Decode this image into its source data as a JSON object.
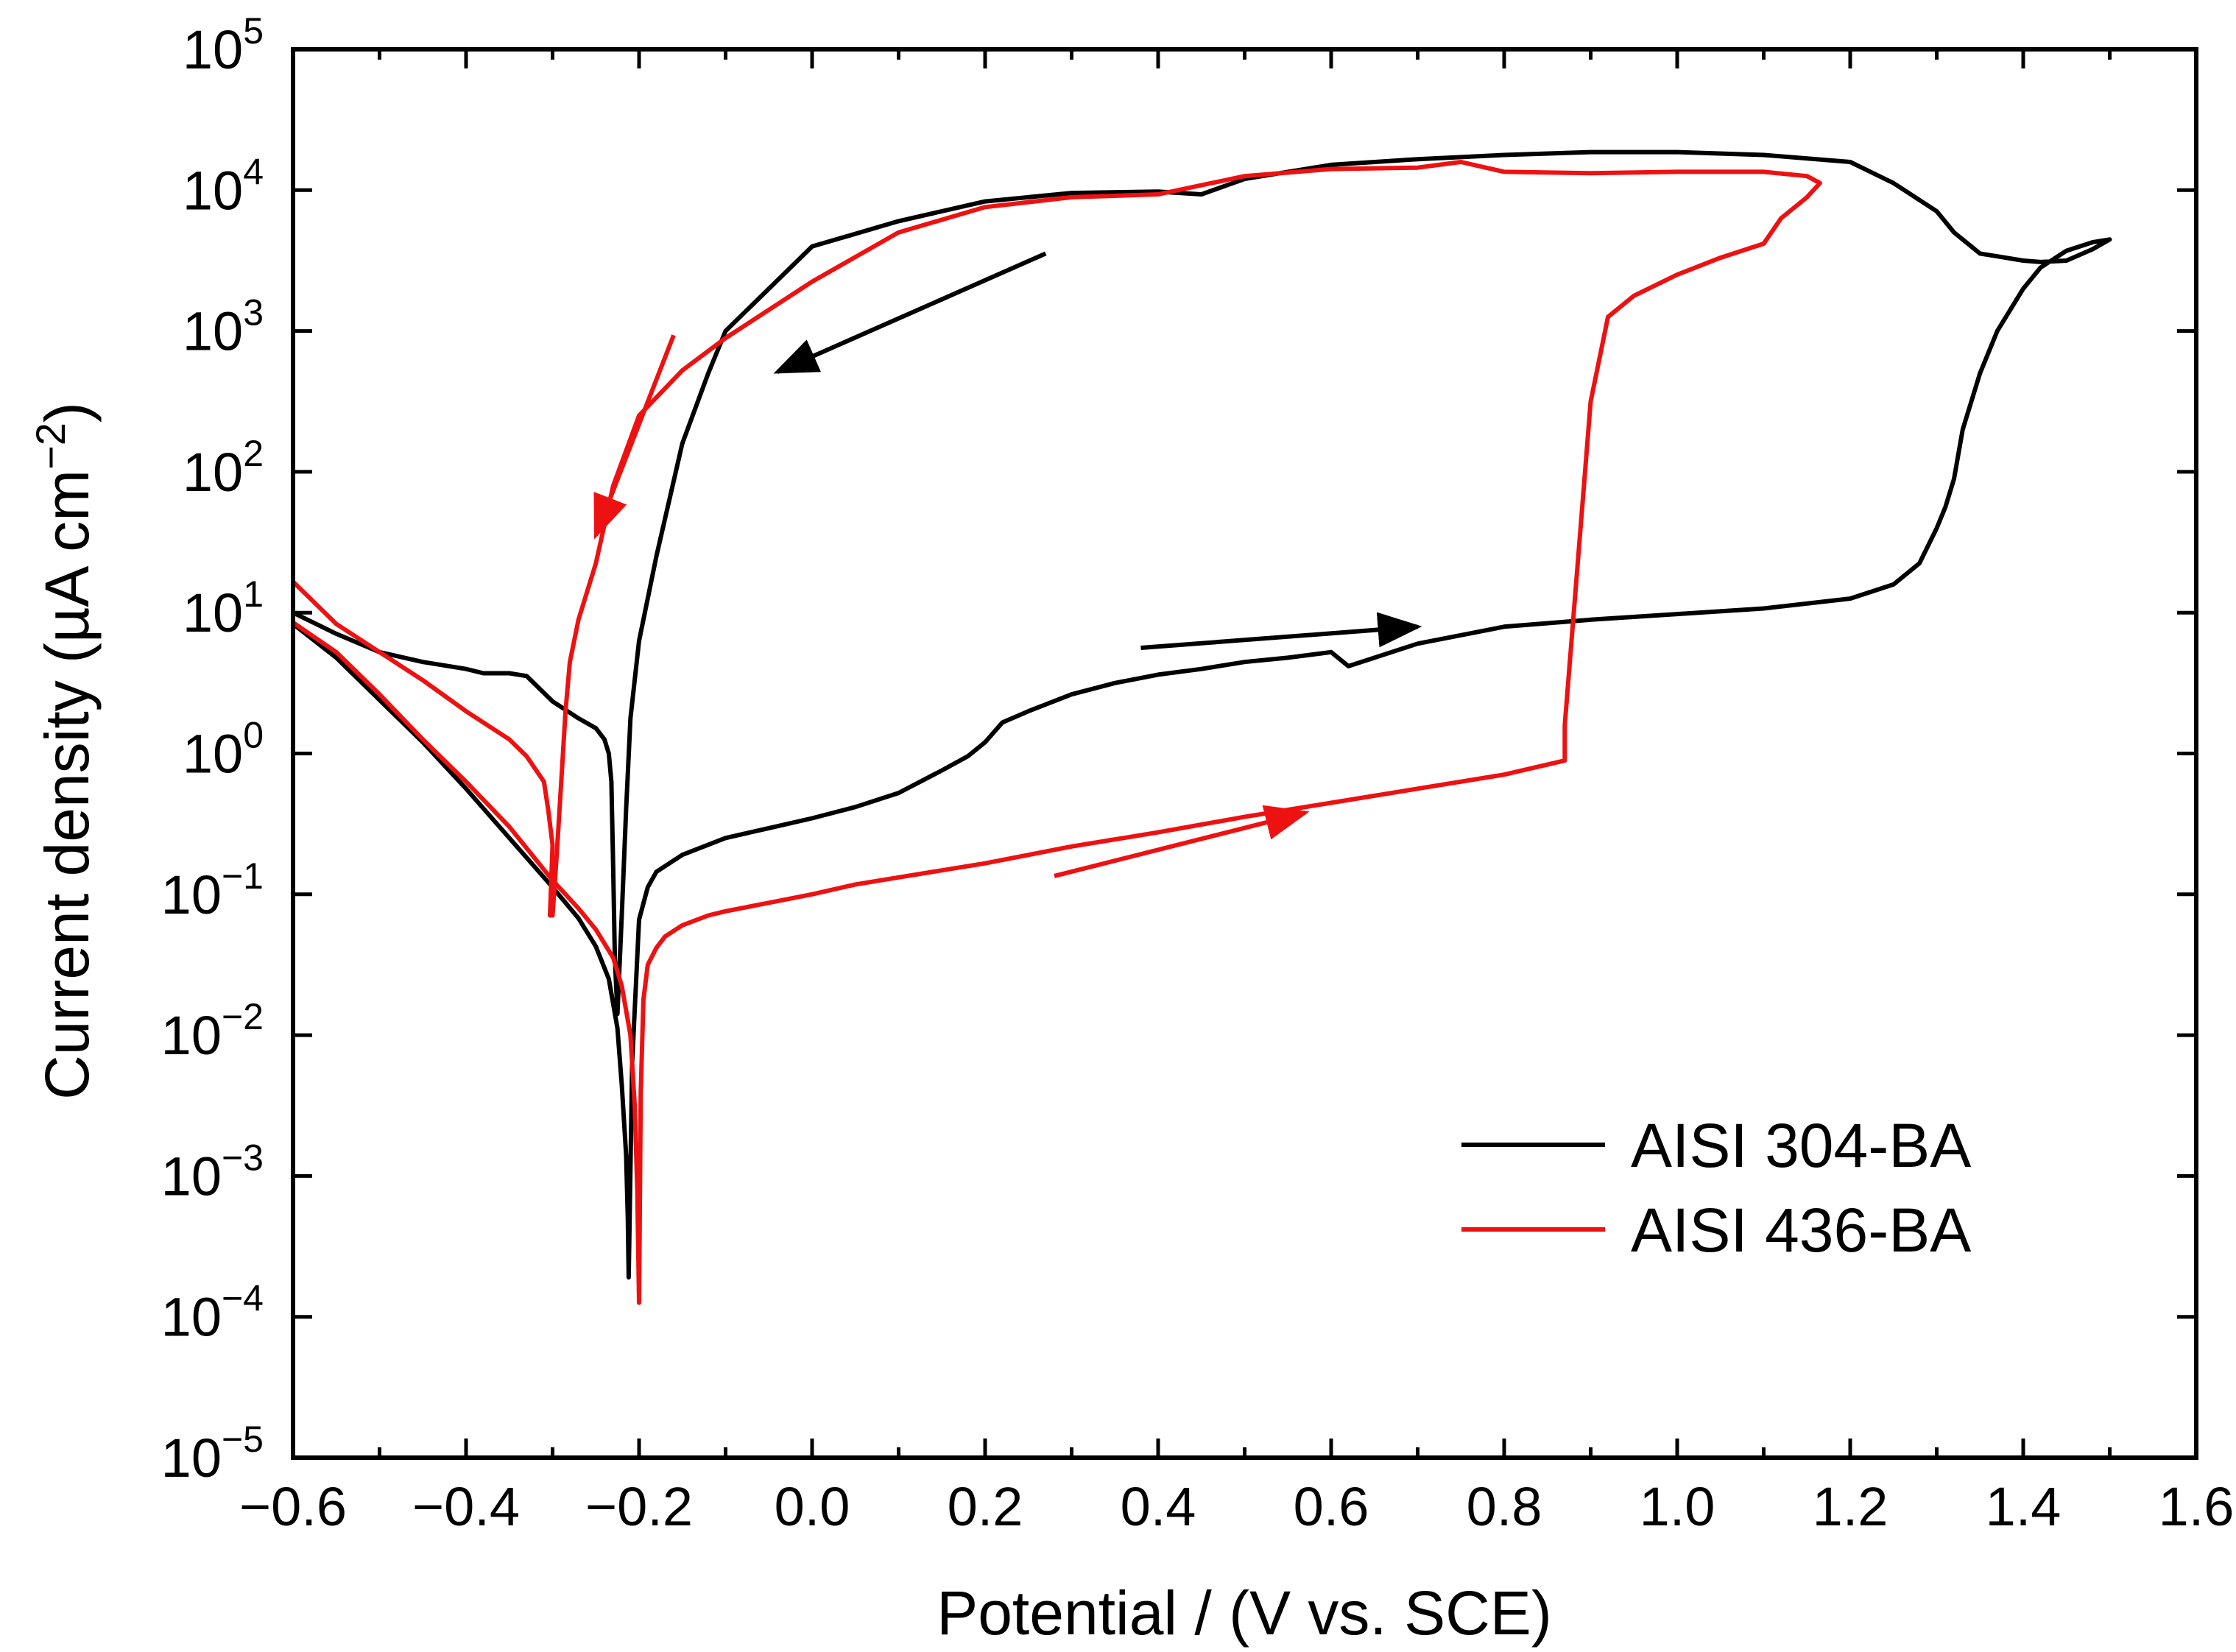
{
  "chart_data": {
    "type": "line",
    "title": "",
    "xlabel": "Potential / (V vs. SCE)",
    "ylabel": "Current density (µA cm−2)",
    "ylabel_main": "Current density (µA cm",
    "ylabel_sup": "−2",
    "ylabel_close": ")",
    "xlim": [
      -0.6,
      1.6
    ],
    "ylim_log10": [
      -5,
      5
    ],
    "yscale": "log",
    "xticks": [
      {
        "value": -0.6,
        "label": "−0.6"
      },
      {
        "value": -0.4,
        "label": "−0.4"
      },
      {
        "value": -0.2,
        "label": "−0.2"
      },
      {
        "value": 0.0,
        "label": "0.0"
      },
      {
        "value": 0.2,
        "label": "0.2"
      },
      {
        "value": 0.4,
        "label": "0.4"
      },
      {
        "value": 0.6,
        "label": "0.6"
      },
      {
        "value": 0.8,
        "label": "0.8"
      },
      {
        "value": 1.0,
        "label": "1.0"
      },
      {
        "value": 1.2,
        "label": "1.2"
      },
      {
        "value": 1.4,
        "label": "1.4"
      },
      {
        "value": 1.6,
        "label": "1.6"
      }
    ],
    "yticks": [
      {
        "exp": -5,
        "base": "10",
        "sup": "−5"
      },
      {
        "exp": -4,
        "base": "10",
        "sup": "−4"
      },
      {
        "exp": -3,
        "base": "10",
        "sup": "−3"
      },
      {
        "exp": -2,
        "base": "10",
        "sup": "−2"
      },
      {
        "exp": -1,
        "base": "10",
        "sup": "−1"
      },
      {
        "exp": 0,
        "base": "10",
        "sup": "0"
      },
      {
        "exp": 1,
        "base": "10",
        "sup": "1"
      },
      {
        "exp": 2,
        "base": "10",
        "sup": "2"
      },
      {
        "exp": 3,
        "base": "10",
        "sup": "3"
      },
      {
        "exp": 4,
        "base": "10",
        "sup": "4"
      },
      {
        "exp": 5,
        "base": "10",
        "sup": "5"
      }
    ],
    "legend": {
      "placement": "bottom-right",
      "entries": [
        {
          "name": "AISI 304-BA",
          "color": "#000000"
        },
        {
          "name": "AISI 436-BA",
          "color": "#ee1111"
        }
      ]
    },
    "series": [
      {
        "name": "AISI 304-BA",
        "color": "#000000",
        "x": [
          -0.6,
          -0.55,
          -0.5,
          -0.45,
          -0.4,
          -0.35,
          -0.3,
          -0.27,
          -0.25,
          -0.235,
          -0.225,
          -0.22,
          -0.215,
          -0.213,
          -0.212,
          -0.212,
          -0.208,
          -0.2,
          -0.19,
          -0.18,
          -0.15,
          -0.1,
          -0.05,
          0.0,
          0.05,
          0.1,
          0.15,
          0.18,
          0.2,
          0.22,
          0.25,
          0.3,
          0.35,
          0.4,
          0.45,
          0.5,
          0.55,
          0.6,
          0.62,
          0.7,
          0.8,
          0.9,
          1.0,
          1.1,
          1.2,
          1.25,
          1.28,
          1.3,
          1.31,
          1.32,
          1.33,
          1.35,
          1.37,
          1.4,
          1.42,
          1.45,
          1.48,
          1.5,
          1.48,
          1.45,
          1.42,
          1.4,
          1.37,
          1.35,
          1.32,
          1.3,
          1.25,
          1.2,
          1.1,
          1.0,
          0.9,
          0.8,
          0.7,
          0.6,
          0.5,
          0.45,
          0.4,
          0.3,
          0.2,
          0.1,
          0.0,
          -0.05,
          -0.1,
          -0.12,
          -0.15,
          -0.18,
          -0.2,
          -0.21,
          -0.215,
          -0.22,
          -0.225,
          -0.228,
          -0.23,
          -0.232,
          -0.235,
          -0.24,
          -0.25,
          -0.27,
          -0.3,
          -0.33,
          -0.35,
          -0.38,
          -0.4,
          -0.45,
          -0.5,
          -0.55,
          -0.6
        ],
        "log10_y": [
          0.92,
          0.68,
          0.38,
          0.08,
          -0.25,
          -0.6,
          -0.95,
          -1.17,
          -1.37,
          -1.6,
          -1.95,
          -2.35,
          -2.85,
          -3.3,
          -3.72,
          -3.72,
          -2.2,
          -1.18,
          -0.95,
          -0.84,
          -0.72,
          -0.6,
          -0.53,
          -0.46,
          -0.38,
          -0.28,
          -0.12,
          -0.02,
          0.08,
          0.22,
          0.3,
          0.42,
          0.5,
          0.56,
          0.6,
          0.65,
          0.68,
          0.72,
          0.62,
          0.78,
          0.9,
          0.95,
          0.99,
          1.03,
          1.1,
          1.2,
          1.35,
          1.6,
          1.75,
          1.95,
          2.3,
          2.7,
          3.0,
          3.3,
          3.45,
          3.57,
          3.63,
          3.65,
          3.58,
          3.5,
          3.49,
          3.5,
          3.53,
          3.55,
          3.7,
          3.85,
          4.05,
          4.2,
          4.25,
          4.27,
          4.27,
          4.25,
          4.22,
          4.18,
          4.08,
          3.97,
          3.99,
          3.98,
          3.92,
          3.78,
          3.6,
          3.3,
          3.0,
          2.7,
          2.2,
          1.4,
          0.8,
          0.25,
          -0.4,
          -1.15,
          -1.85,
          -1.45,
          -0.8,
          -0.2,
          0.0,
          0.1,
          0.18,
          0.25,
          0.37,
          0.55,
          0.57,
          0.57,
          0.6,
          0.65,
          0.72,
          0.85,
          1.0
        ]
      },
      {
        "name": "AISI 436-BA",
        "color": "#ee1111",
        "x": [
          -0.6,
          -0.55,
          -0.5,
          -0.45,
          -0.4,
          -0.35,
          -0.3,
          -0.27,
          -0.25,
          -0.23,
          -0.22,
          -0.21,
          -0.205,
          -0.202,
          -0.2,
          -0.2,
          -0.198,
          -0.195,
          -0.19,
          -0.18,
          -0.17,
          -0.15,
          -0.12,
          -0.1,
          -0.05,
          0.0,
          0.05,
          0.1,
          0.2,
          0.3,
          0.4,
          0.5,
          0.6,
          0.7,
          0.8,
          0.87,
          0.87,
          0.9,
          0.92,
          0.95,
          1.0,
          1.05,
          1.1,
          1.12,
          1.15,
          1.165,
          1.15,
          1.1,
          1.0,
          0.9,
          0.8,
          0.75,
          0.7,
          0.6,
          0.5,
          0.4,
          0.3,
          0.2,
          0.1,
          0.0,
          -0.05,
          -0.1,
          -0.15,
          -0.2,
          -0.23,
          -0.25,
          -0.27,
          -0.28,
          -0.285,
          -0.29,
          -0.295,
          -0.3,
          -0.303,
          -0.3,
          -0.305,
          -0.31,
          -0.33,
          -0.35,
          -0.4,
          -0.45,
          -0.5,
          -0.55,
          -0.6
        ],
        "log10_y": [
          0.93,
          0.72,
          0.42,
          0.1,
          -0.2,
          -0.52,
          -0.9,
          -1.1,
          -1.25,
          -1.45,
          -1.65,
          -2.0,
          -2.5,
          -3.1,
          -3.9,
          -3.9,
          -2.4,
          -1.75,
          -1.5,
          -1.38,
          -1.3,
          -1.22,
          -1.15,
          -1.12,
          -1.06,
          -1.0,
          -0.93,
          -0.88,
          -0.78,
          -0.66,
          -0.56,
          -0.45,
          -0.35,
          -0.25,
          -0.15,
          -0.05,
          0.2,
          2.5,
          3.1,
          3.25,
          3.4,
          3.52,
          3.62,
          3.8,
          3.95,
          4.05,
          4.1,
          4.13,
          4.13,
          4.12,
          4.13,
          4.2,
          4.16,
          4.15,
          4.1,
          3.97,
          3.95,
          3.88,
          3.7,
          3.35,
          3.15,
          2.95,
          2.72,
          2.4,
          1.9,
          1.35,
          0.95,
          0.65,
          0.3,
          -0.2,
          -0.7,
          -1.15,
          -1.15,
          -0.65,
          -0.4,
          -0.2,
          -0.02,
          0.1,
          0.3,
          0.52,
          0.72,
          0.92,
          1.22
        ]
      }
    ],
    "annotations": [
      {
        "type": "arrow",
        "color": "#000000",
        "from": [
          0.27,
          3.55
        ],
        "to": [
          -0.04,
          2.71
        ]
      },
      {
        "type": "arrow",
        "color": "#000000",
        "from": [
          0.38,
          0.75
        ],
        "to": [
          0.7,
          0.9
        ]
      },
      {
        "type": "arrow",
        "color": "#ee1111",
        "from": [
          -0.16,
          2.97
        ],
        "to": [
          -0.25,
          1.55
        ]
      },
      {
        "type": "arrow",
        "color": "#ee1111",
        "from": [
          0.28,
          -0.87
        ],
        "to": [
          0.57,
          -0.42
        ]
      }
    ]
  }
}
